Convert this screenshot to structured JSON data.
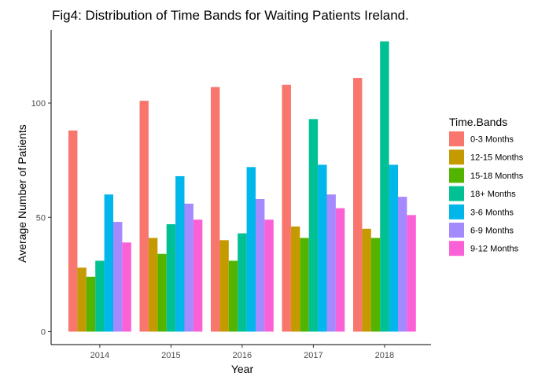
{
  "chart_data": {
    "type": "bar",
    "title": "Fig4: Distribution of Time Bands for Waiting Patients Ireland.",
    "xlabel": "Year",
    "ylabel": "Average Number of Patients",
    "categories": [
      "2014",
      "2015",
      "2016",
      "2017",
      "2018"
    ],
    "ylim": [
      0,
      132
    ],
    "yticks": [
      0,
      50,
      100
    ],
    "grid": false,
    "legend": {
      "title": "Time.Bands",
      "position": "right"
    },
    "series": [
      {
        "name": "0-3 Months",
        "color": "#F8766D",
        "values": [
          88,
          101,
          107,
          108,
          111
        ]
      },
      {
        "name": "12-15 Months",
        "color": "#C49A00",
        "values": [
          28,
          41,
          40,
          46,
          45
        ]
      },
      {
        "name": "15-18 Months",
        "color": "#53B400",
        "values": [
          24,
          34,
          31,
          41,
          41
        ]
      },
      {
        "name": "18+ Months",
        "color": "#00C094",
        "values": [
          31,
          47,
          43,
          93,
          127
        ]
      },
      {
        "name": "3-6 Months",
        "color": "#00B6EB",
        "values": [
          60,
          68,
          72,
          73,
          73
        ]
      },
      {
        "name": "6-9 Months",
        "color": "#A58AFF",
        "values": [
          48,
          56,
          58,
          60,
          59
        ]
      },
      {
        "name": "9-12 Months",
        "color": "#FB61D7",
        "values": [
          39,
          49,
          49,
          54,
          51
        ]
      }
    ]
  }
}
